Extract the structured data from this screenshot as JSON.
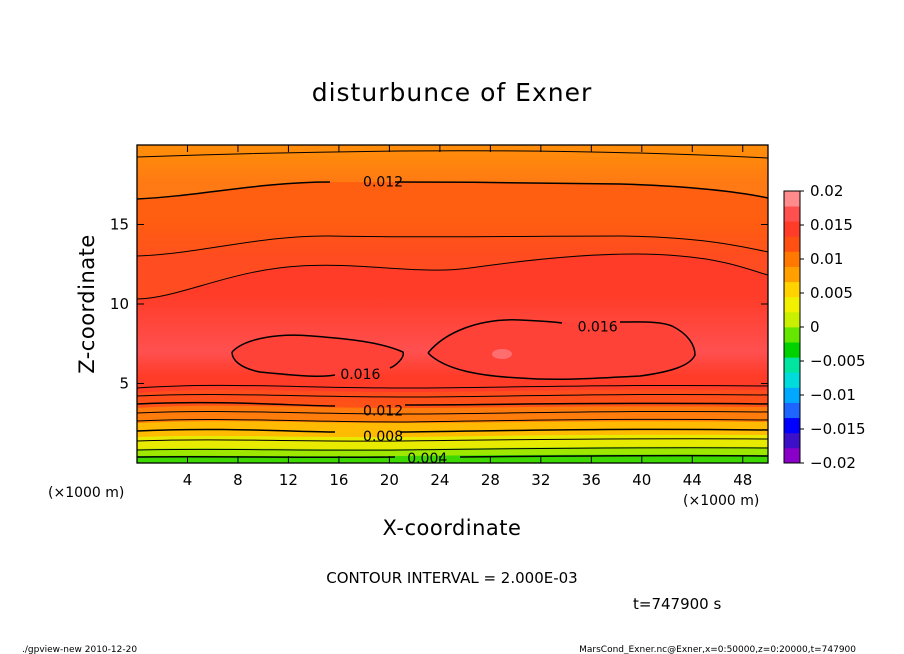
{
  "chart_data": {
    "type": "contour",
    "title": "disturbunce of Exner",
    "xlabel": "X-coordinate",
    "ylabel": "Z-coordinate",
    "x_unit_left": "(×1000 m)",
    "x_unit_right": "(×1000 m)",
    "xlim": [
      0,
      50
    ],
    "ylim": [
      0,
      20
    ],
    "x_ticks": [
      4,
      8,
      12,
      16,
      20,
      24,
      28,
      32,
      36,
      40,
      44,
      48
    ],
    "y_ticks": [
      5,
      10,
      15
    ],
    "contour_interval": 0.002,
    "contour_labels": [
      {
        "text": "0.012",
        "x": 19.5,
        "z": 17.7
      },
      {
        "text": "0.016",
        "x": 36.5,
        "z": 8.6
      },
      {
        "text": "0.016",
        "x": 17.7,
        "z": 5.6
      },
      {
        "text": "0.012",
        "x": 19.5,
        "z": 3.3
      },
      {
        "text": "0.008",
        "x": 19.5,
        "z": 1.7
      },
      {
        "text": "0.004",
        "x": 23.0,
        "z": 0.3
      }
    ],
    "field_levels": [
      {
        "z": 0.2,
        "value": 0.003
      },
      {
        "z": 0.8,
        "value": 0.005
      },
      {
        "z": 1.3,
        "value": 0.007
      },
      {
        "z": 1.9,
        "value": 0.008
      },
      {
        "z": 2.5,
        "value": 0.01
      },
      {
        "z": 3.2,
        "value": 0.012
      },
      {
        "z": 4.4,
        "value": 0.014
      },
      {
        "z": 5.5,
        "value": 0.015
      },
      {
        "z": 7.0,
        "value": 0.016
      },
      {
        "z": 10.5,
        "value": 0.015
      },
      {
        "z": 13.0,
        "value": 0.014
      },
      {
        "z": 15.5,
        "value": 0.013
      },
      {
        "z": 17.5,
        "value": 0.012
      },
      {
        "z": 19.5,
        "value": 0.011
      }
    ],
    "colorbar": {
      "ticks": [
        "0.02",
        "0.015",
        "0.01",
        "0.005",
        "0",
        "−0.005",
        "−0.01",
        "−0.015",
        "−0.02"
      ],
      "range": [
        -0.02,
        0.02
      ],
      "colors": [
        "#8a00c8",
        "#3c0fc8",
        "#0000ff",
        "#1e64ff",
        "#00a8ff",
        "#00dcdc",
        "#00e6a0",
        "#00d200",
        "#64e600",
        "#c8f000",
        "#f0f000",
        "#ffd200",
        "#ffa000",
        "#ff7800",
        "#ff5014",
        "#ff3c28",
        "#ff5050",
        "#ff8c8c"
      ]
    }
  },
  "info": {
    "contour_interval_text": "CONTOUR INTERVAL = 2.000E-03",
    "time_text": "t=747900 s"
  },
  "footer": {
    "left": "./gpview-new  2010-12-20",
    "right": "MarsCond_Exner.nc@Exner,x=0:50000,z=0:20000,t=747900"
  }
}
